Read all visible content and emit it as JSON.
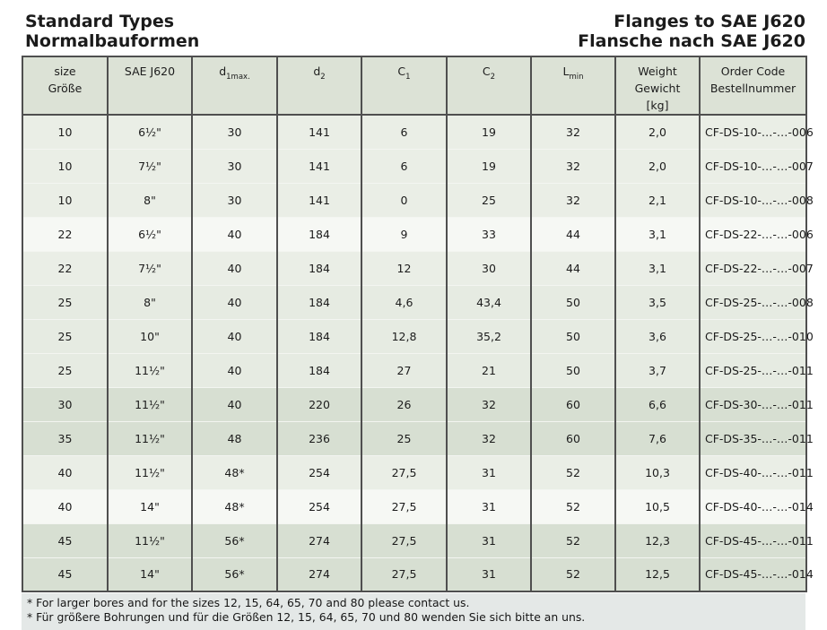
{
  "page": {
    "title_left_line1": "Standard Types",
    "title_left_line2": "Normalbauformen",
    "title_right_line1": "Flanges to SAE J620",
    "title_right_line2": "Flansche nach SAE J620"
  },
  "table": {
    "headers": [
      {
        "key": "size",
        "lines": [
          "size",
          "Größe"
        ]
      },
      {
        "key": "sae-j620",
        "lines": [
          "SAE J620"
        ]
      },
      {
        "key": "d1max",
        "base": "d",
        "sub": "1max."
      },
      {
        "key": "d2",
        "base": "d",
        "sub": "2"
      },
      {
        "key": "c1",
        "base": "C",
        "sub": "1"
      },
      {
        "key": "c2",
        "base": "C",
        "sub": "2"
      },
      {
        "key": "lmin",
        "base": "L",
        "sub": "min"
      },
      {
        "key": "weight",
        "lines": [
          "Weight",
          "Gewicht",
          "[kg]"
        ]
      },
      {
        "key": "order-code",
        "lines": [
          "Order Code",
          "Bestellnummer"
        ]
      }
    ],
    "rows": [
      {
        "tone": "light",
        "cells": [
          "10",
          "6½\"",
          "30",
          "141",
          "6",
          "19",
          "32",
          "2,0",
          "CF-DS-10-…-…-006"
        ]
      },
      {
        "tone": "light",
        "cells": [
          "10",
          "7½\"",
          "30",
          "141",
          "6",
          "19",
          "32",
          "2,0",
          "CF-DS-10-…-…-007"
        ]
      },
      {
        "tone": "light",
        "cells": [
          "10",
          "8\"",
          "30",
          "141",
          "0",
          "25",
          "32",
          "2,1",
          "CF-DS-10-…-…-008"
        ]
      },
      {
        "tone": "white",
        "cells": [
          "22",
          "6½\"",
          "40",
          "184",
          "9",
          "33",
          "44",
          "3,1",
          "CF-DS-22-…-…-006"
        ]
      },
      {
        "tone": "light",
        "cells": [
          "22",
          "7½\"",
          "40",
          "184",
          "12",
          "30",
          "44",
          "3,1",
          "CF-DS-22-…-…-007"
        ]
      },
      {
        "tone": "mid",
        "cells": [
          "25",
          "8\"",
          "40",
          "184",
          "4,6",
          "43,4",
          "50",
          "3,5",
          "CF-DS-25-…-…-008"
        ]
      },
      {
        "tone": "mid",
        "cells": [
          "25",
          "10\"",
          "40",
          "184",
          "12,8",
          "35,2",
          "50",
          "3,6",
          "CF-DS-25-…-…-010"
        ]
      },
      {
        "tone": "mid",
        "cells": [
          "25",
          "11½\"",
          "40",
          "184",
          "27",
          "21",
          "50",
          "3,7",
          "CF-DS-25-…-…-011"
        ]
      },
      {
        "tone": "dark",
        "cells": [
          "30",
          "11½\"",
          "40",
          "220",
          "26",
          "32",
          "60",
          "6,6",
          "CF-DS-30-…-…-011"
        ]
      },
      {
        "tone": "dark",
        "cells": [
          "35",
          "11½\"",
          "48",
          "236",
          "25",
          "32",
          "60",
          "7,6",
          "CF-DS-35-…-…-011"
        ]
      },
      {
        "tone": "light",
        "cells": [
          "40",
          "11½\"",
          "48*",
          "254",
          "27,5",
          "31",
          "52",
          "10,3",
          "CF-DS-40-…-…-011"
        ]
      },
      {
        "tone": "white",
        "cells": [
          "40",
          "14\"",
          "48*",
          "254",
          "27,5",
          "31",
          "52",
          "10,5",
          "CF-DS-40-…-…-014"
        ]
      },
      {
        "tone": "dark",
        "cells": [
          "45",
          "11½\"",
          "56*",
          "274",
          "27,5",
          "31",
          "52",
          "12,3",
          "CF-DS-45-…-…-011"
        ]
      },
      {
        "tone": "dark",
        "cells": [
          "45",
          "14\"",
          "56*",
          "274",
          "27,5",
          "31",
          "52",
          "12,5",
          "CF-DS-45-…-…-014"
        ]
      }
    ]
  },
  "notes": [
    "* For larger bores and for the sizes 12, 15, 64, 65, 70 and 80 please contact us.",
    "* Für größere Bohrungen und für die Größen 12, 15, 64, 65, 70 und 80 wenden Sie sich bitte an uns."
  ],
  "colors": {
    "header_bg": "#dce2d6",
    "row_light": "#eaeee6",
    "row_mid": "#e6ebe2",
    "row_dark": "#d7dfd2",
    "row_white": "#f6f8f4",
    "border": "#4f4f4f",
    "notes_bg": "#e4e8e7",
    "text": "#1c1c1c"
  }
}
